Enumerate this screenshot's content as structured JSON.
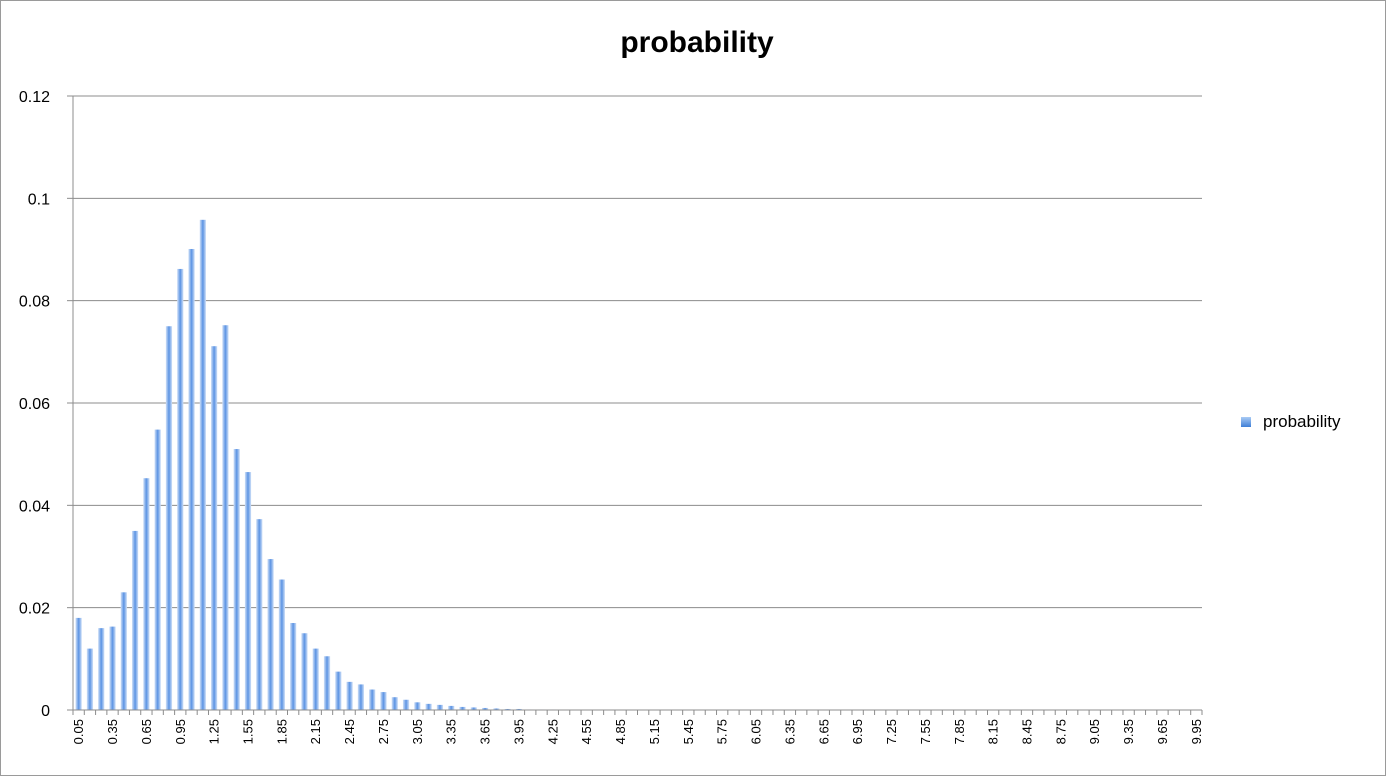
{
  "chart_data": {
    "type": "bar",
    "title": "probability",
    "xlabel": "",
    "ylabel": "",
    "ylim": [
      0,
      0.12
    ],
    "yticks": [
      "0",
      "0.02",
      "0.04",
      "0.06",
      "0.08",
      "0.1",
      "0.12"
    ],
    "ytick_values": [
      0,
      0.02,
      0.04,
      0.06,
      0.08,
      0.1,
      0.12
    ],
    "x_start": 0.05,
    "x_step": 0.1,
    "x_count": 100,
    "x_label_every": 3,
    "grid": true,
    "legend": "right",
    "series": [
      {
        "name": "probability",
        "color": "#5b93e3",
        "values": [
          0.018,
          0.012,
          0.016,
          0.0163,
          0.023,
          0.035,
          0.0453,
          0.0548,
          0.075,
          0.0862,
          0.0901,
          0.0958,
          0.0711,
          0.0752,
          0.051,
          0.0465,
          0.0373,
          0.0295,
          0.0255,
          0.017,
          0.015,
          0.012,
          0.0105,
          0.0075,
          0.0055,
          0.005,
          0.004,
          0.0035,
          0.0025,
          0.002,
          0.0015,
          0.0012,
          0.001,
          0.0008,
          0.0006,
          0.0005,
          0.0004,
          0.0003,
          0.0002,
          0.0002,
          0.0001,
          0.0001,
          0.0001,
          5e-05,
          5e-05,
          5e-05,
          3e-05,
          3e-05,
          2e-05,
          2e-05,
          1e-05,
          1e-05,
          1e-05,
          1e-05,
          1e-05,
          1e-05,
          1e-05,
          1e-05,
          1e-05,
          1e-05,
          1e-05,
          1e-05,
          1e-05,
          1e-05,
          1e-05,
          1e-05,
          1e-05,
          1e-05,
          1e-05,
          1e-05,
          1e-05,
          1e-05,
          1e-05,
          1e-05,
          1e-05,
          1e-05,
          1e-05,
          1e-05,
          1e-05,
          1e-05,
          1e-05,
          1e-05,
          1e-05,
          1e-05,
          1e-05,
          1e-05,
          1e-05,
          1e-05,
          1e-05,
          1e-05,
          1e-05,
          1e-05,
          1e-05,
          1e-05,
          1e-05,
          1e-05,
          1e-05,
          1e-05,
          1e-05,
          1e-05
        ]
      }
    ]
  }
}
